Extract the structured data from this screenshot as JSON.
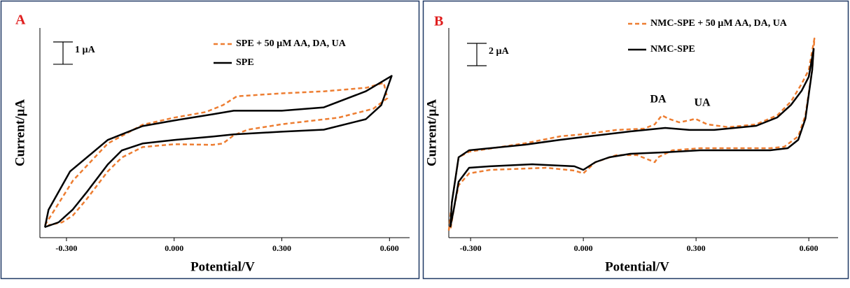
{
  "chart_data": [
    {
      "type": "line",
      "panel_label": "A",
      "xlabel": "Potential/V",
      "ylabel": "Current/µA",
      "xlim": [
        -0.374,
        0.656
      ],
      "ylim": [
        0,
        9.4
      ],
      "xticks": [
        {
          "value": -0.3,
          "label": "-0.300"
        },
        {
          "value": 0,
          "label": "0.000"
        },
        {
          "value": 0.3,
          "label": "0.300"
        },
        {
          "value": 0.6,
          "label": "0.600"
        }
      ],
      "scale_bar": {
        "value": 1,
        "label": "1 µA"
      },
      "series": [
        {
          "name": "SPE + 50 µM AA, DA, UA",
          "color": "#ed7d31",
          "dashed": true,
          "x": [
            -0.36,
            -0.321,
            -0.282,
            -0.185,
            -0.088,
            0,
            0.088,
            0.136,
            0.175,
            0.302,
            0.419,
            0.536,
            0.584,
            0.594,
            0.555,
            0.458,
            0.302,
            0.205,
            0.166,
            0.136,
            0.107,
            0,
            -0.088,
            -0.146,
            -0.185,
            -0.244,
            -0.282,
            -0.312,
            -0.351
          ],
          "values": [
            0.56,
            1.56,
            2.56,
            4.22,
            5.06,
            5.38,
            5.63,
            5.94,
            6.34,
            6.47,
            6.56,
            6.72,
            6.94,
            6.25,
            5.78,
            5.38,
            5.09,
            4.84,
            4.59,
            4.22,
            4.16,
            4.19,
            4.06,
            3.59,
            2.97,
            1.72,
            1.0,
            0.69,
            0.56
          ]
        },
        {
          "name": "SPE",
          "color": "#000000",
          "dashed": false,
          "x": [
            -0.36,
            -0.35,
            -0.29,
            -0.185,
            -0.088,
            0,
            0.107,
            0.166,
            0.3,
            0.417,
            0.534,
            0.606,
            0.577,
            0.534,
            0.417,
            0.3,
            0.166,
            0.107,
            0,
            -0.088,
            -0.146,
            -0.185,
            -0.244,
            -0.283,
            -0.322,
            -0.361
          ],
          "values": [
            0.47,
            1.25,
            2.97,
            4.38,
            5.0,
            5.25,
            5.53,
            5.69,
            5.69,
            5.84,
            6.56,
            7.25,
            5.94,
            5.31,
            4.84,
            4.75,
            4.63,
            4.53,
            4.38,
            4.22,
            3.91,
            3.28,
            2.03,
            1.25,
            0.69,
            0.47
          ]
        }
      ]
    },
    {
      "type": "line",
      "panel_label": "B",
      "xlabel": "Potential/V",
      "ylabel": "Current/µA",
      "xlim": [
        -0.358,
        0.678
      ],
      "ylim": [
        0,
        18.75
      ],
      "xticks": [
        {
          "value": -0.3,
          "label": "-0.300"
        },
        {
          "value": 0,
          "label": "0.000"
        },
        {
          "value": 0.3,
          "label": "0.300"
        },
        {
          "value": 0.6,
          "label": "0.600"
        }
      ],
      "scale_bar": {
        "value": 2,
        "label": "2 µA"
      },
      "annotations": [
        "DA",
        "UA"
      ],
      "series": [
        {
          "name": "NMC-SPE + 50 µM AA, DA, UA",
          "color": "#ed7d31",
          "dashed": true,
          "x": [
            -0.358,
            -0.35,
            -0.332,
            -0.304,
            -0.155,
            -0.061,
            0,
            0.088,
            0.162,
            0.19,
            0.209,
            0.227,
            0.255,
            0.283,
            0.298,
            0.33,
            0.386,
            0.46,
            0.516,
            0.553,
            0.581,
            0.6,
            0.615,
            0.609,
            0.591,
            0.572,
            0.535,
            0.497,
            0.311,
            0.237,
            0.199,
            0.19,
            0.143,
            0.088,
            0.032,
            0,
            -0.024,
            -0.099,
            -0.248,
            -0.304,
            -0.332,
            -0.345,
            -0.354
          ],
          "values": [
            0.63,
            3.13,
            7.19,
            7.69,
            8.44,
            9.06,
            9.25,
            9.63,
            9.75,
            10.13,
            10.94,
            10.63,
            10.31,
            10.5,
            10.63,
            10.13,
            9.88,
            10.13,
            10.94,
            12.19,
            13.75,
            15.0,
            17.81,
            15.0,
            10.94,
            9.06,
            8.13,
            8.0,
            8.0,
            7.81,
            7.19,
            6.75,
            7.38,
            7.38,
            6.75,
            5.75,
            6.0,
            6.25,
            6.06,
            5.75,
            4.69,
            2.5,
            0.63
          ]
        },
        {
          "name": "NMC-SPE",
          "color": "#000000",
          "dashed": false,
          "x": [
            -0.354,
            -0.35,
            -0.332,
            -0.304,
            -0.155,
            -0.061,
            0,
            0.125,
            0.218,
            0.283,
            0.348,
            0.46,
            0.516,
            0.553,
            0.581,
            0.6,
            0.613,
            0.609,
            0.591,
            0.572,
            0.544,
            0.497,
            0.311,
            0.218,
            0.125,
            0.069,
            0.032,
            0,
            -0.024,
            -0.099,
            -0.136,
            -0.248,
            -0.304,
            -0.332,
            -0.345,
            -0.354
          ],
          "values": [
            0.94,
            3.13,
            7.19,
            7.81,
            8.31,
            8.75,
            9.0,
            9.5,
            9.81,
            9.63,
            9.63,
            10.0,
            10.75,
            11.88,
            13.13,
            14.38,
            16.88,
            15.0,
            10.63,
            8.75,
            8.0,
            7.81,
            7.81,
            7.63,
            7.5,
            7.19,
            6.75,
            6.06,
            6.38,
            6.5,
            6.56,
            6.38,
            6.25,
            5.0,
            2.5,
            0.94
          ]
        }
      ]
    }
  ]
}
